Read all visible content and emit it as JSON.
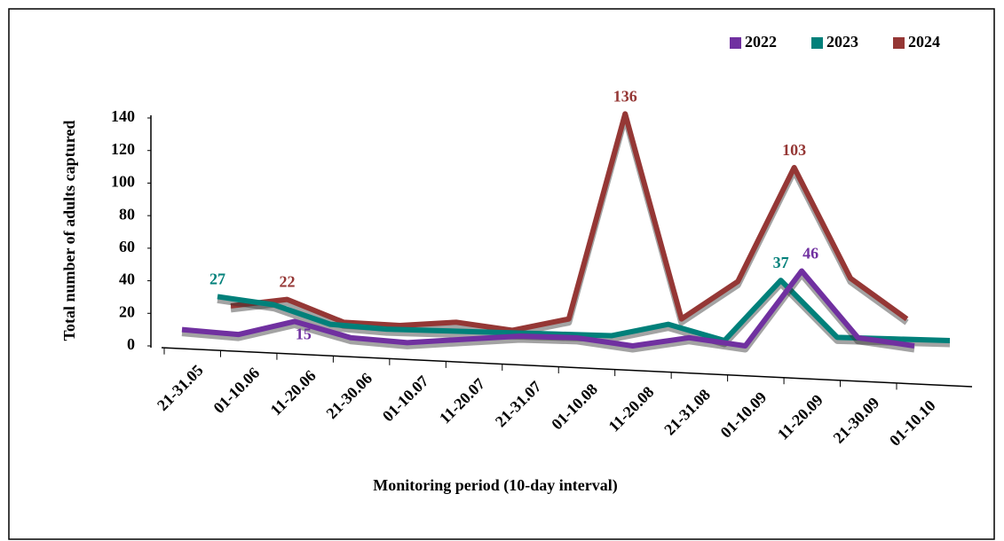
{
  "chart_data": {
    "type": "line",
    "y_label": "Total number of adults captured",
    "x_label": "Monitoring period (10-day interval)",
    "categories": [
      "21-31.05",
      "01-10.06",
      "11-20.06",
      "21-30.06",
      "01-10.07",
      "11-20.07",
      "21-31.07",
      "01-10.08",
      "11-20.08",
      "21-31.08",
      "01-10.09",
      "11-20.09",
      "21-30.09",
      "01-10.10"
    ],
    "series": [
      {
        "name": "2022",
        "color": "#7030a0",
        "values": [
          10,
          7,
          15,
          5,
          2,
          4,
          6,
          5,
          0,
          5,
          0,
          46,
          5,
          0
        ]
      },
      {
        "name": "2023",
        "color": "#00807a",
        "values": [
          27,
          22,
          10,
          7,
          6,
          5,
          4,
          3,
          10,
          0,
          37,
          2,
          1,
          0
        ]
      },
      {
        "name": "2024",
        "color": "#953735",
        "values": [
          18,
          22,
          8,
          6,
          8,
          3,
          10,
          136,
          10,
          33,
          103,
          35,
          10,
          null
        ]
      }
    ],
    "ylim": [
      0,
      140
    ],
    "yticks": [
      0,
      20,
      40,
      60,
      80,
      100,
      120,
      140
    ],
    "legend": "top-right"
  }
}
